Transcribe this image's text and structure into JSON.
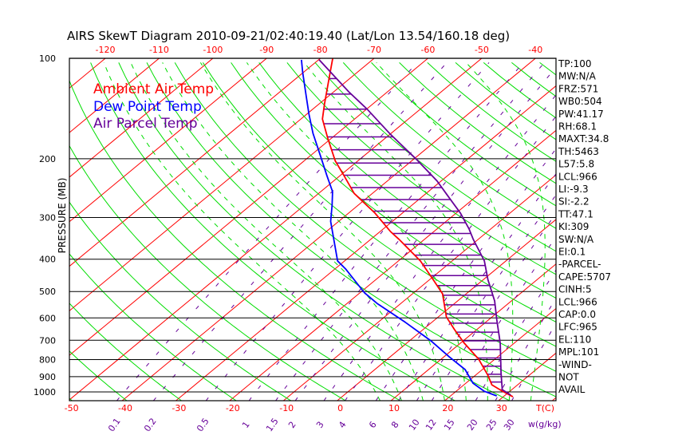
{
  "chart_data": {
    "type": "line",
    "title": "AIRS SkewT Diagram 2010-09-21/02:40:19.40 (Lat/Lon 13.54/160.18 deg)",
    "ylabel": "PRESSURE (MB)",
    "xlabel": "T(C)",
    "mixing_ratio_label": "w(g/kg)",
    "y_scale": "log",
    "ylim_hpa": [
      1063,
      100
    ],
    "pressure_ticks": [
      100,
      200,
      300,
      400,
      500,
      600,
      700,
      800,
      900,
      1000
    ],
    "top_temp_ticks": [
      -120,
      -110,
      -100,
      -90,
      -80,
      -70,
      -60,
      -50,
      -40
    ],
    "bottom_temp_ticks": [
      -50,
      -40,
      -30,
      -20,
      -10,
      0,
      10,
      20,
      30
    ],
    "mixing_ratio_ticks": [
      "0.1",
      "0.2",
      "0.5",
      "1",
      "1.5",
      "2",
      "3",
      "4",
      "6",
      "8",
      "10",
      "12",
      "15",
      "20",
      "25",
      "30"
    ],
    "legend": [
      {
        "label": "Ambient Air Temp",
        "color": "#ff0000"
      },
      {
        "label": "Dew Point Temp",
        "color": "#0000ff"
      },
      {
        "label": "Air Parcel Temp",
        "color": "#660099"
      }
    ],
    "series": [
      {
        "name": "Ambient Air Temp",
        "color": "#ff0000",
        "p": [
          100,
          116,
          137,
          152,
          174,
          203,
          225,
          254,
          291,
          331,
          349,
          405,
          460,
          508,
          596,
          651,
          714,
          798,
          891,
          952,
          995,
          1034
        ],
        "t": [
          -77.7,
          -73.6,
          -69.0,
          -66.0,
          -60.6,
          -54.2,
          -49.2,
          -43.4,
          -35.1,
          -28.0,
          -24.7,
          -15.9,
          -9.4,
          -4.4,
          1.5,
          5.9,
          10.7,
          17.0,
          22.3,
          25.2,
          28.6,
          31.8
        ]
      },
      {
        "name": "Dew Point Temp",
        "color": "#0000ff",
        "p": [
          101,
          110,
          130,
          147,
          168,
          196,
          225,
          251,
          276,
          308,
          405,
          428,
          505,
          543,
          616,
          703,
          785,
          857,
          941,
          995,
          1028
        ],
        "t": [
          -83.2,
          -80.2,
          -74.1,
          -69.6,
          -64.5,
          -58.1,
          -52.4,
          -47.8,
          -44.8,
          -41.5,
          -31.3,
          -28.0,
          -19.1,
          -14.4,
          -5.2,
          4.0,
          11.0,
          16.8,
          21.3,
          25.2,
          28.6
        ]
      },
      {
        "name": "Air Parcel Temp",
        "color": "#660099",
        "p": [
          101,
          126,
          142,
          169,
          201,
          233,
          261,
          291,
          325,
          349,
          405,
          460,
          534,
          606,
          714,
          876,
          984,
          1022
        ],
        "t": [
          -79.9,
          -67.2,
          -59.9,
          -49.9,
          -39.4,
          -30.8,
          -24.9,
          -19.2,
          -14.0,
          -10.9,
          -4.0,
          0.8,
          6.9,
          11.4,
          17.4,
          24.2,
          28.2,
          31.0
        ]
      }
    ],
    "hatch_levels_hpa": [
      115,
      128,
      142,
      157,
      172,
      188,
      206,
      224,
      244,
      265,
      287,
      311,
      335,
      361,
      389,
      418,
      448,
      480,
      513,
      548,
      584,
      622,
      662,
      703,
      746,
      791,
      837,
      885,
      934,
      986
    ],
    "stats": [
      "TP:100",
      "MW:N/A",
      "FRZ:571",
      "WB0:504",
      "PW:41.17",
      "RH:68.1",
      "MAXT:34.8",
      "TH:5463",
      "L57:5.8",
      "LCL:966",
      "LI:-9.3",
      "SI:-2.2",
      "TT:47.1",
      "KI:309",
      "SW:N/A",
      "EI:0.1",
      "-PARCEL-",
      "CAPE:5707",
      "CINH:5",
      "LCL:966",
      "CAP:0.0",
      "LFC:965",
      "EL:110",
      "MPL:101",
      "-WIND-",
      "NOT",
      "AVAIL"
    ],
    "colors": {
      "isotherm": "#ff0000",
      "dry_adiabat": "#00dd00",
      "moist_adiabat": "#00dd00",
      "mixing_ratio": "#660099",
      "isobar": "#000000"
    }
  }
}
